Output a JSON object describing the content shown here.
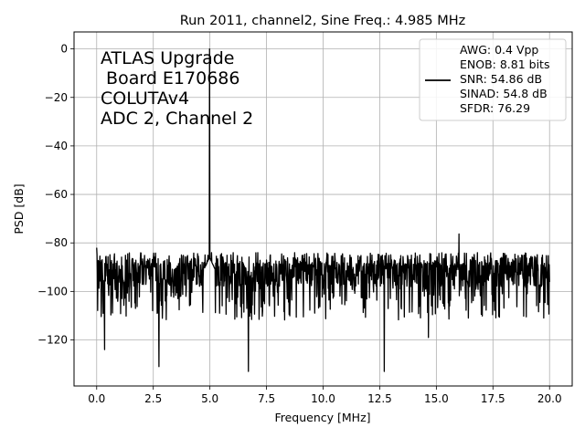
{
  "chart_data": {
    "type": "line",
    "title": "Run 2011, channel2, Sine Freq.: 4.985 MHz",
    "xlabel": "Frequency [MHz]",
    "ylabel": "PSD [dB]",
    "xlim": [
      -1.0,
      21.0
    ],
    "ylim": [
      -139,
      7
    ],
    "xticks": [
      0.0,
      2.5,
      5.0,
      7.5,
      10.0,
      12.5,
      15.0,
      17.5,
      20.0
    ],
    "xtick_labels": [
      "0.0",
      "2.5",
      "5.0",
      "7.5",
      "10.0",
      "12.5",
      "15.0",
      "17.5",
      "20.0"
    ],
    "yticks": [
      0,
      -20,
      -40,
      -60,
      -80,
      -100,
      -120
    ],
    "ytick_labels": [
      "0",
      "−20",
      "−40",
      "−60",
      "−80",
      "−100",
      "−120"
    ],
    "grid": true,
    "legend_position": "top-right",
    "annotation_lines": [
      "ATLAS Upgrade",
      " Board E170686",
      "COLUTAv4",
      "ADC 2, Channel 2"
    ],
    "legend_lines": [
      "AWG: 0.4 Vpp",
      "ENOB: 8.81 bits",
      "SNR: 54.86 dB",
      "SINAD: 54.8 dB",
      "SFDR: 76.29"
    ],
    "line_color": "#000000",
    "series": [
      {
        "x_start": 0.0,
        "x_end": 20.0,
        "noise_floor_db": -93,
        "noise_upper_db": -84,
        "noise_lower_db": -110,
        "peaks": [
          {
            "x": 0.0,
            "y": -82
          },
          {
            "x": 4.985,
            "y": 0
          },
          {
            "x": 16.0,
            "y": -76.3
          }
        ],
        "dips": [
          {
            "x": 0.35,
            "y": -124
          },
          {
            "x": 2.75,
            "y": -131
          },
          {
            "x": 6.7,
            "y": -133
          },
          {
            "x": 12.7,
            "y": -133
          },
          {
            "x": 14.65,
            "y": -119
          }
        ]
      }
    ]
  }
}
